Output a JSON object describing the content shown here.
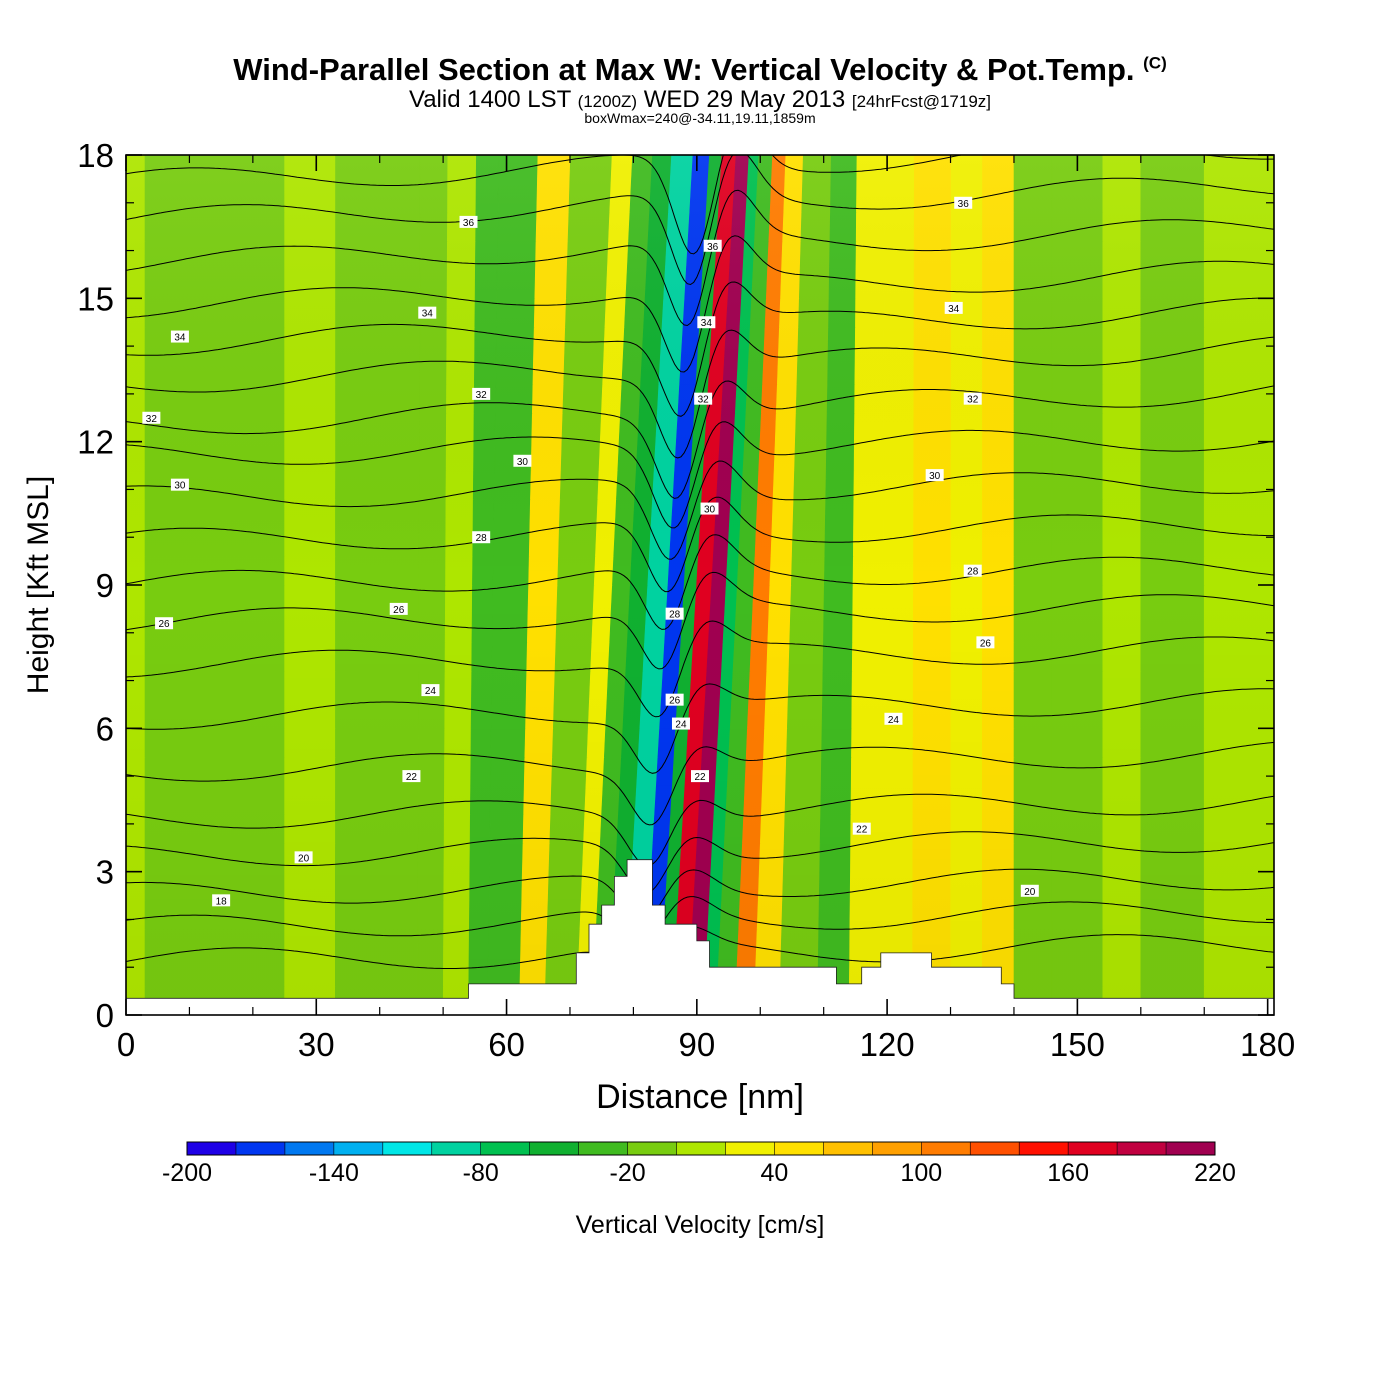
{
  "header": {
    "title": "Wind-Parallel Section at Max W: Vertical Velocity & Pot.Temp.",
    "copyright": "(C)",
    "valid_prefix": "Valid 1400 LST",
    "valid_utc": "(1200Z)",
    "valid_date": "WED 29 May 2013",
    "forecast_info": "[24hrFcst@1719z]",
    "subtitle": "boxWmax=240@-34.11,19.11,1859m"
  },
  "chart_data": {
    "type": "heatmap",
    "xlabel": "Distance [nm]",
    "ylabel": "Height [Kft MSL]",
    "xlim": [
      0,
      181
    ],
    "ylim": [
      0,
      18
    ],
    "xticks": [
      "0",
      "30",
      "60",
      "90",
      "120",
      "150",
      "180"
    ],
    "yticks": [
      "0",
      "3",
      "6",
      "9",
      "12",
      "15",
      "18"
    ],
    "colorbar": {
      "label": "Vertical Velocity [cm/s]",
      "min": -200,
      "max": 220,
      "step": 20,
      "tick_labels": [
        "-200",
        "-140",
        "-80",
        "-20",
        "40",
        "100",
        "160",
        "220"
      ],
      "colors": [
        "#1e00e6",
        "#0036f0",
        "#0078f0",
        "#00b0f0",
        "#00e6e6",
        "#00d2a0",
        "#00c050",
        "#10b030",
        "#40bb20",
        "#78cc10",
        "#aee600",
        "#f0f000",
        "#ffe000",
        "#ffc000",
        "#ffa000",
        "#ff7c00",
        "#ff5000",
        "#ff1000",
        "#e00020",
        "#c00040",
        "#a00050"
      ]
    },
    "velocity_bands": [
      {
        "x": 0,
        "w": 0
      },
      {
        "x": 3,
        "w": -20
      },
      {
        "x": 25,
        "w": 5
      },
      {
        "x": 33,
        "w": -20
      },
      {
        "x": 46,
        "w": -20
      },
      {
        "x": 50,
        "w": 0
      },
      {
        "x": 54,
        "w": -25
      },
      {
        "x": 57,
        "w": -30
      },
      {
        "x": 62,
        "w": 50
      },
      {
        "x": 66,
        "w": -5
      },
      {
        "x": 71,
        "w": 20
      },
      {
        "x": 73.5,
        "w": -30
      },
      {
        "x": 76,
        "w": -60
      },
      {
        "x": 78.5,
        "w": -100
      },
      {
        "x": 81.5,
        "w": -170
      },
      {
        "x": 84,
        "w": -60
      },
      {
        "x": 86,
        "w": 160
      },
      {
        "x": 88.5,
        "w": 240
      },
      {
        "x": 91,
        "w": -80
      },
      {
        "x": 93,
        "w": -30
      },
      {
        "x": 96,
        "w": 100
      },
      {
        "x": 99,
        "w": 40
      },
      {
        "x": 103,
        "w": -20
      },
      {
        "x": 109,
        "w": -30
      },
      {
        "x": 114,
        "w": 20
      },
      {
        "x": 119,
        "w": 20
      },
      {
        "x": 124,
        "w": 40
      },
      {
        "x": 130,
        "w": 30
      },
      {
        "x": 135,
        "w": 40
      },
      {
        "x": 140,
        "w": -20
      },
      {
        "x": 146,
        "w": -20
      },
      {
        "x": 154,
        "w": 0
      },
      {
        "x": 160,
        "w": -20
      },
      {
        "x": 170,
        "w": 0
      },
      {
        "x": 181,
        "w": -10
      }
    ],
    "isentropes": {
      "levels": [
        18,
        19,
        20,
        21,
        22,
        23,
        24,
        25,
        26,
        27,
        28,
        29,
        30,
        31,
        32,
        33,
        34,
        35,
        36,
        37
      ],
      "base_height_kft": [
        1.3,
        2.0,
        2.7,
        3.5,
        4.3,
        5.3,
        6.4,
        7.5,
        8.4,
        9.2,
        10.1,
        11.0,
        11.9,
        12.7,
        13.6,
        14.4,
        15.2,
        16.1,
        17.0,
        17.8
      ],
      "labels": [
        {
          "text": "18",
          "x": 15,
          "y": 2.4
        },
        {
          "text": "20",
          "x": 28,
          "y": 3.3
        },
        {
          "text": "22",
          "x": 45,
          "y": 5.0
        },
        {
          "text": "24",
          "x": 48,
          "y": 6.8
        },
        {
          "text": "26",
          "x": 6,
          "y": 8.2
        },
        {
          "text": "26",
          "x": 43,
          "y": 8.5
        },
        {
          "text": "28",
          "x": 56,
          "y": 10.0
        },
        {
          "text": "30",
          "x": 8.5,
          "y": 11.1
        },
        {
          "text": "30",
          "x": 62.5,
          "y": 11.6
        },
        {
          "text": "32",
          "x": 4,
          "y": 12.5
        },
        {
          "text": "32",
          "x": 56,
          "y": 13.0
        },
        {
          "text": "34",
          "x": 8.5,
          "y": 14.2
        },
        {
          "text": "34",
          "x": 47.5,
          "y": 14.7
        },
        {
          "text": "36",
          "x": 54,
          "y": 16.6
        },
        {
          "text": "36",
          "x": 92.5,
          "y": 16.1
        },
        {
          "text": "34",
          "x": 91.5,
          "y": 14.5
        },
        {
          "text": "32",
          "x": 91,
          "y": 12.9
        },
        {
          "text": "30",
          "x": 92,
          "y": 10.6
        },
        {
          "text": "28",
          "x": 86.5,
          "y": 8.4
        },
        {
          "text": "26",
          "x": 86.5,
          "y": 6.6
        },
        {
          "text": "24",
          "x": 87.5,
          "y": 6.1
        },
        {
          "text": "22",
          "x": 90.5,
          "y": 5.0
        },
        {
          "text": "22",
          "x": 116,
          "y": 3.9
        },
        {
          "text": "24",
          "x": 121,
          "y": 6.2
        },
        {
          "text": "26",
          "x": 135.5,
          "y": 7.8
        },
        {
          "text": "28",
          "x": 133.5,
          "y": 9.3
        },
        {
          "text": "30",
          "x": 127.5,
          "y": 11.3
        },
        {
          "text": "32",
          "x": 133.5,
          "y": 12.9
        },
        {
          "text": "34",
          "x": 130.5,
          "y": 14.8
        },
        {
          "text": "36",
          "x": 132,
          "y": 17.0
        },
        {
          "text": "20",
          "x": 142.5,
          "y": 2.6
        }
      ]
    },
    "terrain": [
      [
        0,
        0.35
      ],
      [
        54,
        0.35
      ],
      [
        54,
        0.65
      ],
      [
        71,
        0.65
      ],
      [
        71,
        1.3
      ],
      [
        73,
        1.3
      ],
      [
        73,
        1.9
      ],
      [
        75,
        1.9
      ],
      [
        75,
        2.3
      ],
      [
        77,
        2.3
      ],
      [
        77,
        2.9
      ],
      [
        79,
        2.9
      ],
      [
        79,
        3.25
      ],
      [
        83,
        3.25
      ],
      [
        83,
        2.3
      ],
      [
        85,
        2.3
      ],
      [
        85,
        1.9
      ],
      [
        90,
        1.9
      ],
      [
        90,
        1.55
      ],
      [
        92,
        1.55
      ],
      [
        92,
        1.0
      ],
      [
        112,
        1.0
      ],
      [
        112,
        0.65
      ],
      [
        116,
        0.65
      ],
      [
        116,
        1.0
      ],
      [
        119,
        1.0
      ],
      [
        119,
        1.3
      ],
      [
        127,
        1.3
      ],
      [
        127,
        1.0
      ],
      [
        138,
        1.0
      ],
      [
        138,
        0.65
      ],
      [
        140,
        0.65
      ],
      [
        140,
        0.35
      ],
      [
        181,
        0.35
      ]
    ]
  }
}
